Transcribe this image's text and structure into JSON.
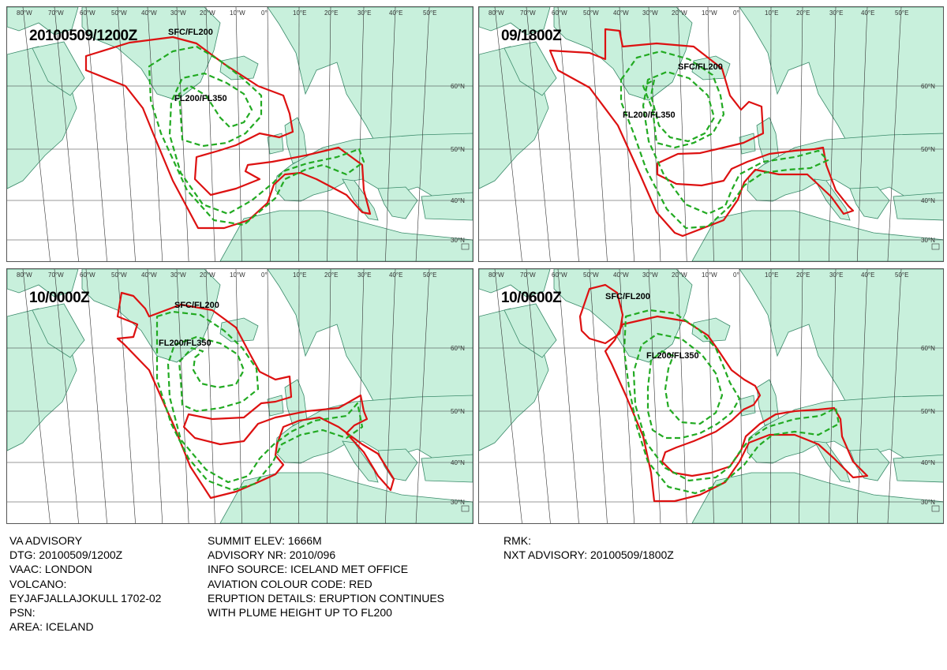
{
  "panels": [
    {
      "time": "20100509/1200Z",
      "sfc_label": "SFC/FL200",
      "fl_label": "FL200/FL350"
    },
    {
      "time": "09/1800Z",
      "sfc_label": "SFC/FL200",
      "fl_label": "FL200/FL350"
    },
    {
      "time": "10/0000Z",
      "sfc_label": "SFC/FL200",
      "fl_label": "FL200/FL350"
    },
    {
      "time": "10/0600Z",
      "sfc_label": "SFC/FL200",
      "fl_label": "FL200/FL350"
    }
  ],
  "grid_labels": {
    "top": [
      "80°W",
      "70°W",
      "60°W",
      "50°W",
      "40°W",
      "30°W",
      "20°W",
      "10°W",
      "0°",
      "10°E",
      "20°E",
      "30°E",
      "40°E",
      "50°E"
    ],
    "right": [
      "60°N",
      "50°N",
      "40°N",
      "30°N"
    ]
  },
  "colors": {
    "land": "#c8f0dc",
    "sea": "#ffffff",
    "coast": "#3a8a6a",
    "sfc_outline": "#dd1111",
    "fl_outline": "#22aa22",
    "grid": "#333333"
  },
  "advisory": {
    "col1": [
      "VA ADVISORY",
      "DTG:  20100509/1200Z",
      "VAAC:  LONDON",
      "VOLCANO:",
      "EYJAFJALLAJOKULL 1702-02",
      "PSN:",
      "AREA:  ICELAND"
    ],
    "col2": [
      "SUMMIT ELEV:  1666M",
      "ADVISORY NR:  2010/096",
      "INFO SOURCE:  ICELAND MET OFFICE",
      "AVIATION COLOUR CODE:  RED",
      "ERUPTION DETAILS:  ERUPTION CONTINUES",
      "WITH PLUME HEIGHT UP TO FL200"
    ],
    "col3": [
      "RMK:",
      "NXT ADVISORY:  20100509/1800Z"
    ]
  }
}
